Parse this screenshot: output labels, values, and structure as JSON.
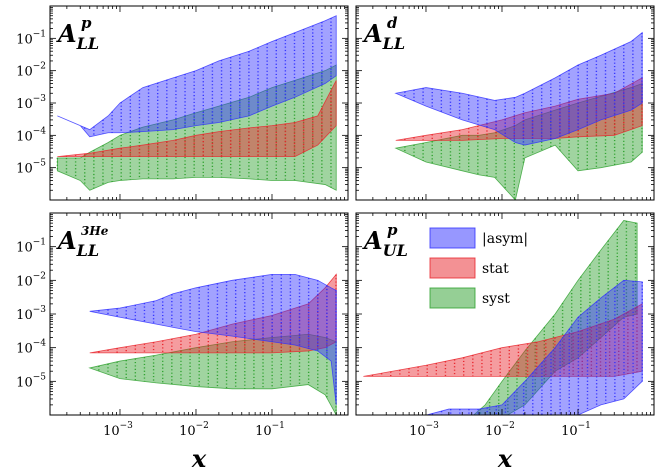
{
  "chart_data": [
    {
      "type": "area",
      "panel": "A_LL^p",
      "title_main": "A",
      "title_sub": "LL",
      "title_sup": "p",
      "xlabel": "",
      "xscale": "log",
      "yscale": "log",
      "xlim": [
        0.00012,
        1.0
      ],
      "ylim": [
        1e-06,
        1.0
      ],
      "yticks": [
        {
          "v": 1e-05,
          "base": "10",
          "exp": "−5"
        },
        {
          "v": 0.0001,
          "base": "10",
          "exp": "−4"
        },
        {
          "v": 0.001,
          "base": "10",
          "exp": "−3"
        },
        {
          "v": 0.01,
          "base": "10",
          "exp": "−2"
        },
        {
          "v": 0.1,
          "base": "10",
          "exp": "−1"
        }
      ],
      "xticks": [],
      "series": [
        {
          "name": "syst",
          "color": "#2ca02c",
          "x": [
            0.00015,
            0.0003,
            0.0004,
            0.0007,
            0.001,
            0.002,
            0.005,
            0.01,
            0.02,
            0.05,
            0.1,
            0.2,
            0.5,
            0.7
          ],
          "upper": [
            2e-05,
            2e-05,
            3e-05,
            6e-05,
            0.0001,
            0.00018,
            0.0003,
            0.0005,
            0.0008,
            0.0015,
            0.003,
            0.005,
            0.01,
            0.015
          ],
          "lower": [
            8e-06,
            4e-06,
            2e-06,
            3.5e-06,
            4e-06,
            4.5e-06,
            4.5e-06,
            5e-06,
            5e-06,
            4.5e-06,
            4e-06,
            4e-06,
            3e-06,
            2e-06
          ]
        },
        {
          "name": "stat",
          "color": "#e8232a",
          "x": [
            0.00015,
            0.0004,
            0.001,
            0.002,
            0.005,
            0.01,
            0.02,
            0.05,
            0.1,
            0.2,
            0.4,
            0.7
          ],
          "upper": [
            2.2e-05,
            2.8e-05,
            4e-05,
            5e-05,
            7e-05,
            0.0001,
            0.00013,
            0.00017,
            0.0002,
            0.00025,
            0.0004,
            0.005
          ],
          "lower": [
            2.2e-05,
            2.2e-05,
            2.2e-05,
            2.2e-05,
            2.2e-05,
            2.2e-05,
            2.2e-05,
            2.2e-05,
            2.2e-05,
            2.2e-05,
            5e-05,
            0.0002
          ]
        },
        {
          "name": "|asym|",
          "color": "#3030ff",
          "x": [
            0.00015,
            0.0003,
            0.0004,
            0.0007,
            0.001,
            0.002,
            0.005,
            0.01,
            0.02,
            0.05,
            0.1,
            0.2,
            0.5,
            0.7
          ],
          "upper": [
            0.0004,
            0.0002,
            0.00015,
            0.0004,
            0.001,
            0.003,
            0.006,
            0.01,
            0.02,
            0.04,
            0.08,
            0.15,
            0.35,
            0.5
          ],
          "lower": [
            0.0004,
            0.0002,
            9e-05,
            0.00012,
            0.00012,
            0.00013,
            0.00015,
            0.0002,
            0.00025,
            0.0004,
            0.0008,
            0.0015,
            0.004,
            0.007
          ]
        }
      ]
    },
    {
      "type": "area",
      "panel": "A_LL^d",
      "title_main": "A",
      "title_sub": "LL",
      "title_sup": "d",
      "xlabel": "",
      "xscale": "log",
      "yscale": "log",
      "xlim": [
        0.00012,
        1.0
      ],
      "ylim": [
        1e-06,
        1.0
      ],
      "yticks": [],
      "xticks": [],
      "series": [
        {
          "name": "syst",
          "color": "#2ca02c",
          "x": [
            0.0004,
            0.001,
            0.003,
            0.005,
            0.008,
            0.015,
            0.02,
            0.05,
            0.1,
            0.2,
            0.5,
            0.7
          ],
          "upper": [
            4e-05,
            6e-05,
            0.0001,
            0.0001,
            0.00012,
            0.0002,
            0.0003,
            0.0006,
            0.001,
            0.0016,
            0.003,
            0.004
          ],
          "lower": [
            4e-05,
            1.5e-05,
            8e-06,
            6e-06,
            5e-06,
            1e-06,
            2e-05,
            5e-05,
            8e-06,
            1e-05,
            1.5e-05,
            3e-05
          ]
        },
        {
          "name": "stat",
          "color": "#e8232a",
          "x": [
            0.0004,
            0.001,
            0.003,
            0.01,
            0.02,
            0.05,
            0.1,
            0.3,
            0.7
          ],
          "upper": [
            7e-05,
            0.0001,
            0.00015,
            0.0003,
            0.0005,
            0.0008,
            0.0013,
            0.002,
            0.006
          ],
          "lower": [
            7e-05,
            7e-05,
            7e-05,
            8e-05,
            8e-05,
            8e-05,
            9e-05,
            0.0001,
            0.0002
          ]
        },
        {
          "name": "|asym|",
          "color": "#3030ff",
          "x": [
            0.0004,
            0.001,
            0.003,
            0.008,
            0.015,
            0.02,
            0.05,
            0.1,
            0.2,
            0.5,
            0.7
          ],
          "upper": [
            0.002,
            0.003,
            0.002,
            0.0012,
            0.0015,
            0.002,
            0.006,
            0.015,
            0.03,
            0.08,
            0.15
          ],
          "lower": [
            0.002,
            0.0008,
            0.0003,
            0.00015,
            6e-05,
            5e-05,
            8e-05,
            0.00015,
            0.0003,
            0.0006,
            0.001
          ]
        }
      ]
    },
    {
      "type": "area",
      "panel": "A_LL^3He",
      "title_main": "A",
      "title_sub": "LL",
      "title_sup": "3He",
      "xlabel": "x",
      "xscale": "log",
      "yscale": "log",
      "xlim": [
        0.00012,
        1.0
      ],
      "ylim": [
        1e-06,
        1.0
      ],
      "yticks": [
        {
          "v": 1e-05,
          "base": "10",
          "exp": "−5"
        },
        {
          "v": 0.0001,
          "base": "10",
          "exp": "−4"
        },
        {
          "v": 0.001,
          "base": "10",
          "exp": "−3"
        },
        {
          "v": 0.01,
          "base": "10",
          "exp": "−2"
        },
        {
          "v": 0.1,
          "base": "10",
          "exp": "−1"
        }
      ],
      "xticks": [
        {
          "v": 0.001,
          "base": "10",
          "exp": "−3"
        },
        {
          "v": 0.01,
          "base": "10",
          "exp": "−2"
        },
        {
          "v": 0.1,
          "base": "10",
          "exp": "−1"
        }
      ],
      "series": [
        {
          "name": "syst",
          "color": "#2ca02c",
          "x": [
            0.0004,
            0.001,
            0.003,
            0.01,
            0.03,
            0.1,
            0.3,
            0.5,
            0.7
          ],
          "upper": [
            2.5e-05,
            4e-05,
            6e-05,
            0.0001,
            0.00015,
            0.0002,
            0.00025,
            0.0002,
            0.00015
          ],
          "lower": [
            2.5e-05,
            1.2e-05,
            9e-06,
            7e-06,
            6e-06,
            6e-06,
            8e-06,
            4e-06,
            1e-06
          ]
        },
        {
          "name": "stat",
          "color": "#e8232a",
          "x": [
            0.0004,
            0.001,
            0.003,
            0.01,
            0.03,
            0.1,
            0.3,
            0.5,
            0.7
          ],
          "upper": [
            7e-05,
            0.0001,
            0.00015,
            0.00025,
            0.0005,
            0.0009,
            0.002,
            0.006,
            0.015
          ],
          "lower": [
            7e-05,
            7e-05,
            7e-05,
            7e-05,
            7e-05,
            7e-05,
            8e-05,
            0.0001,
            0.00015
          ]
        },
        {
          "name": "|asym|",
          "color": "#3030ff",
          "x": [
            0.0004,
            0.001,
            0.003,
            0.005,
            0.01,
            0.03,
            0.1,
            0.2,
            0.4,
            0.6,
            0.7
          ],
          "upper": [
            0.0012,
            0.0015,
            0.0025,
            0.004,
            0.006,
            0.01,
            0.015,
            0.015,
            0.01,
            0.006,
            0.005
          ],
          "lower": [
            0.0012,
            0.0008,
            0.0005,
            0.0004,
            0.0003,
            0.00022,
            0.00015,
            0.00012,
            8e-05,
            4e-05,
            2e-06
          ]
        }
      ]
    },
    {
      "type": "area",
      "panel": "A_UL^p",
      "title_main": "A",
      "title_sub": "UL",
      "title_sup": "p",
      "xlabel": "x",
      "xscale": "log",
      "yscale": "log",
      "xlim": [
        0.00012,
        1.0
      ],
      "ylim": [
        1e-06,
        1.0
      ],
      "yticks": [],
      "xticks": [
        {
          "v": 0.001,
          "base": "10",
          "exp": "−3"
        },
        {
          "v": 0.01,
          "base": "10",
          "exp": "−2"
        },
        {
          "v": 0.1,
          "base": "10",
          "exp": "−1"
        }
      ],
      "series": [
        {
          "name": "syst",
          "color": "#2ca02c",
          "x": [
            0.003,
            0.006,
            0.01,
            0.02,
            0.05,
            0.1,
            0.2,
            0.4,
            0.6
          ],
          "upper": [
            5e-07,
            2e-06,
            1e-05,
            8e-05,
            0.001,
            0.01,
            0.08,
            0.6,
            0.5
          ],
          "lower": [
            5e-07,
            6e-07,
            8e-07,
            2e-06,
            2e-05,
            5e-05,
            0.0002,
            0.0008,
            0.001
          ]
        },
        {
          "name": "stat",
          "color": "#e8232a",
          "x": [
            0.00015,
            0.001,
            0.003,
            0.01,
            0.03,
            0.1,
            0.3,
            0.7
          ],
          "upper": [
            1.4e-05,
            3e-05,
            5e-05,
            0.0001,
            0.00015,
            0.0003,
            0.0007,
            0.002
          ],
          "lower": [
            1.4e-05,
            1.4e-05,
            1.4e-05,
            1.4e-05,
            1.4e-05,
            1.4e-05,
            1.4e-05,
            2e-05
          ]
        },
        {
          "name": "|asym|",
          "color": "#3030ff",
          "x": [
            0.0007,
            0.002,
            0.005,
            0.01,
            0.02,
            0.05,
            0.1,
            0.2,
            0.4,
            0.7
          ],
          "upper": [
            8e-07,
            1.5e-06,
            1.5e-06,
            2e-06,
            1e-05,
            0.0001,
            0.0008,
            0.003,
            0.01,
            0.009
          ],
          "lower": [
            8e-07,
            6e-07,
            4e-07,
            4e-07,
            5e-07,
            6e-07,
            1e-06,
            2e-06,
            3e-06,
            1e-05
          ]
        }
      ]
    }
  ],
  "legend": {
    "location": "upper-left of bottom-right panel",
    "entries": [
      {
        "label": "|asym|",
        "color": "#3030ff"
      },
      {
        "label": "stat",
        "color": "#e8232a"
      },
      {
        "label": "syst",
        "color": "#2ca02c"
      }
    ]
  }
}
